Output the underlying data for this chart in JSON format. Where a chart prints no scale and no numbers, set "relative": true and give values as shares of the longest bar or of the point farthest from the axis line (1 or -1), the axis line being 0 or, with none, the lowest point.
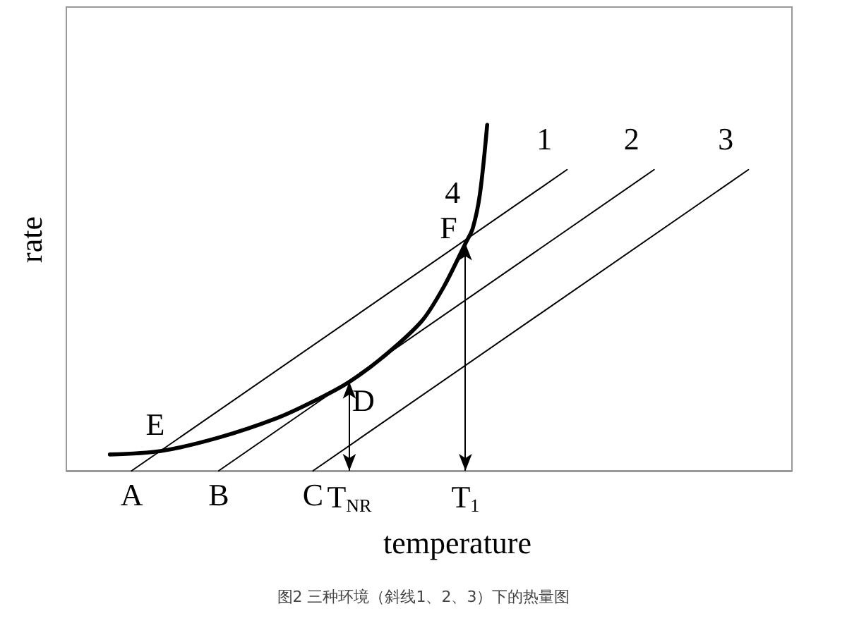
{
  "chart_data": {
    "type": "line",
    "relative": true,
    "title": "图2 三种环境（斜线1、2、3）下的热量图",
    "xlabel": "temperature",
    "ylabel": "rate",
    "categories": [
      null,
      null,
      null,
      null,
      null,
      null,
      null,
      null,
      null,
      "A",
      null,
      null,
      null,
      null,
      null,
      null,
      null,
      null,
      null,
      null,
      null,
      "B",
      null,
      null,
      null,
      null,
      null,
      null,
      null,
      null,
      null,
      null,
      null,
      null,
      "C",
      null,
      null,
      null,
      null,
      "T$_{NR}$",
      null,
      null,
      null,
      null,
      null,
      null,
      null,
      null,
      null,
      null,
      null,
      null,
      null,
      null,
      null,
      "T$_{1}$",
      null,
      null,
      null,
      null,
      null,
      null,
      null,
      null,
      null,
      null,
      null,
      null,
      null,
      null,
      null,
      null,
      null,
      null,
      null,
      null,
      null,
      null,
      null,
      null,
      null,
      null,
      null,
      null,
      null,
      null,
      null,
      null,
      null,
      null,
      null,
      null,
      null,
      null,
      null,
      null,
      null,
      null,
      null,
      null,
      null
    ],
    "series": [
      {
        "name": "1",
        "color": "#000000",
        "values": [
          null,
          null,
          null,
          null,
          null,
          null,
          null,
          null,
          null,
          0,
          null,
          null,
          null,
          null,
          null,
          null,
          null,
          null,
          null,
          null,
          null,
          null,
          null,
          null,
          null,
          null,
          null,
          null,
          null,
          null,
          null,
          null,
          null,
          null,
          null,
          null,
          null,
          null,
          null,
          null,
          null,
          null,
          null,
          null,
          null,
          null,
          null,
          null,
          null,
          null,
          null,
          null,
          null,
          null,
          null,
          null,
          null,
          null,
          null,
          null,
          null,
          null,
          null,
          null,
          null,
          null,
          null,
          null,
          null,
          0.87,
          null,
          null,
          null,
          null,
          null,
          null,
          null,
          null,
          null,
          null,
          null,
          null,
          null,
          null,
          null,
          null,
          null,
          null,
          null,
          null,
          null,
          null,
          null,
          null,
          null,
          null,
          null,
          null,
          null,
          null,
          null
        ]
      },
      {
        "name": "2",
        "color": "#000000",
        "values": [
          null,
          null,
          null,
          null,
          null,
          null,
          null,
          null,
          null,
          null,
          null,
          null,
          null,
          null,
          null,
          null,
          null,
          null,
          null,
          null,
          null,
          0,
          null,
          null,
          null,
          null,
          null,
          null,
          null,
          null,
          null,
          null,
          null,
          null,
          null,
          null,
          null,
          null,
          null,
          null,
          null,
          null,
          null,
          null,
          null,
          null,
          null,
          null,
          null,
          null,
          null,
          null,
          null,
          null,
          null,
          null,
          null,
          null,
          null,
          null,
          null,
          null,
          null,
          null,
          null,
          null,
          null,
          null,
          null,
          null,
          null,
          null,
          null,
          null,
          null,
          null,
          null,
          null,
          null,
          null,
          null,
          0.87,
          null,
          null,
          null,
          null,
          null,
          null,
          null,
          null,
          null,
          null,
          null,
          null,
          null,
          null,
          null,
          null,
          null,
          null,
          null
        ]
      },
      {
        "name": "3",
        "color": "#000000",
        "values": [
          null,
          null,
          null,
          null,
          null,
          null,
          null,
          null,
          null,
          null,
          null,
          null,
          null,
          null,
          null,
          null,
          null,
          null,
          null,
          null,
          null,
          null,
          null,
          null,
          null,
          null,
          null,
          null,
          null,
          null,
          null,
          null,
          null,
          null,
          0,
          null,
          null,
          null,
          null,
          null,
          null,
          null,
          null,
          null,
          null,
          null,
          null,
          null,
          null,
          null,
          null,
          null,
          null,
          null,
          null,
          null,
          null,
          null,
          null,
          null,
          null,
          null,
          null,
          null,
          null,
          null,
          null,
          null,
          null,
          null,
          null,
          null,
          null,
          null,
          null,
          null,
          null,
          null,
          null,
          null,
          null,
          null,
          null,
          null,
          null,
          null,
          null,
          null,
          null,
          null,
          null,
          null,
          null,
          null,
          0.87,
          null,
          null,
          null,
          null,
          null,
          null
        ]
      },
      {
        "name": "4",
        "color": "#000000",
        "values": [
          null,
          null,
          null,
          null,
          null,
          null,
          0.047,
          null,
          null,
          null,
          null,
          null,
          null,
          0.057,
          null,
          null,
          null,
          null,
          null,
          null,
          null,
          0.096,
          null,
          null,
          null,
          null,
          null,
          null,
          null,
          0.152,
          null,
          null,
          null,
          null,
          0.2,
          null,
          null,
          null,
          null,
          0.257,
          null,
          null,
          null,
          null,
          0.335,
          null,
          null,
          null,
          null,
          0.433,
          null,
          null,
          0.531,
          null,
          null,
          0.657,
          0.7,
          0.8,
          1.0,
          null,
          null,
          null,
          null,
          null,
          null,
          null,
          null,
          null,
          null,
          null,
          null,
          null,
          null,
          null,
          null,
          null,
          null,
          null,
          null,
          null,
          null,
          null,
          null,
          null,
          null,
          null,
          null,
          null,
          null,
          null,
          null,
          null,
          null,
          null,
          null,
          null,
          null,
          null,
          null,
          null,
          null
        ]
      }
    ],
    "annotations": [
      "E",
      {
        "text": "D",
        "x": "T$_{NR}$",
        "y": 0.257
      },
      {
        "text": "F",
        "x": "T$_{1}$",
        "y": 0.657
      }
    ],
    "grid": false,
    "legend": false,
    "marker": "none",
    "line_style": "solid"
  }
}
